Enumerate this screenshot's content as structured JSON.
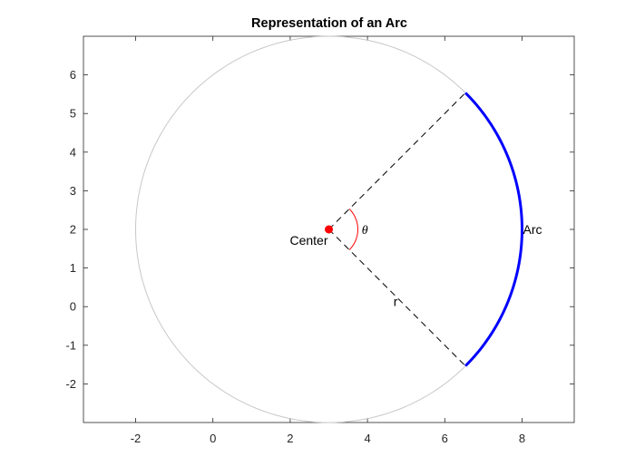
{
  "chart_data": {
    "type": "diagram",
    "title": "Representation of an Arc",
    "xlim": [
      -3.35,
      9.35
    ],
    "ylim": [
      -3,
      7
    ],
    "x_ticks": [
      -2,
      0,
      2,
      4,
      6,
      8
    ],
    "y_ticks": [
      -2,
      -1,
      0,
      1,
      2,
      3,
      4,
      5,
      6
    ],
    "grid": false,
    "circle": {
      "center": [
        3,
        2
      ],
      "radius": 5,
      "color": "#c8c8c8"
    },
    "arc": {
      "start_deg": -45,
      "end_deg": 45,
      "color": "#0000ff"
    },
    "radii_color": "#000000",
    "angle_marker": {
      "radius": 0.75,
      "color": "#ff0000"
    },
    "center_marker": {
      "color": "#ff0000"
    },
    "labels": {
      "center": "Center",
      "theta": "θ",
      "radius": "r",
      "arc": "Arc"
    }
  }
}
